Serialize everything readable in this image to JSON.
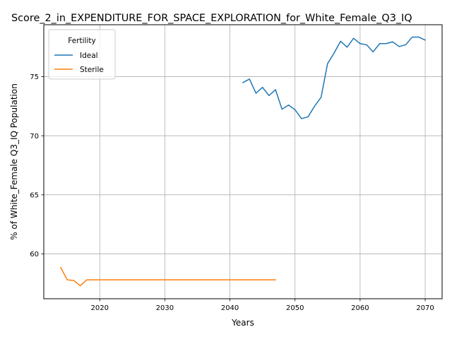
{
  "chart_data": {
    "type": "line",
    "title": "Score_2_in_EXPENDITURE_FOR_SPACE_EXPLORATION_for_White_Female_Q3_IQ",
    "xlabel": "Years",
    "ylabel": "% of White_Female Q3_IQ Population",
    "xlim": [
      2011.4,
      2072.6
    ],
    "ylim": [
      56.2,
      79.4
    ],
    "x_ticks": [
      2020,
      2030,
      2040,
      2050,
      2060,
      2070
    ],
    "y_ticks": [
      60,
      65,
      70,
      75
    ],
    "grid": true,
    "legend": {
      "title": "Fertility",
      "position": "top-left"
    },
    "series": [
      {
        "name": "Ideal",
        "color": "#1f77b4",
        "x": [
          2042,
          2043,
          2044,
          2045,
          2046,
          2047,
          2048,
          2049,
          2050,
          2051,
          2052,
          2053,
          2054,
          2055,
          2056,
          2057,
          2058,
          2059,
          2060,
          2061,
          2062,
          2063,
          2064,
          2065,
          2066,
          2067,
          2068,
          2069,
          2070
        ],
        "y": [
          74.5,
          74.8,
          73.6,
          74.1,
          73.4,
          73.9,
          72.25,
          72.6,
          72.2,
          71.45,
          71.6,
          72.5,
          73.25,
          76.1,
          77.0,
          78.0,
          77.5,
          78.25,
          77.8,
          77.7,
          77.1,
          77.8,
          77.8,
          77.95,
          77.55,
          77.7,
          78.35,
          78.35,
          78.1
        ]
      },
      {
        "name": "Sterile",
        "color": "#ff7f0e",
        "x": [
          2014,
          2015,
          2016,
          2017,
          2018,
          2019,
          2020,
          2021,
          2022,
          2023,
          2024,
          2025,
          2026,
          2027,
          2028,
          2029,
          2030,
          2031,
          2032,
          2033,
          2034,
          2035,
          2036,
          2037,
          2038,
          2039,
          2040,
          2041,
          2042,
          2043,
          2044,
          2045,
          2046,
          2047
        ],
        "y": [
          58.85,
          57.8,
          57.75,
          57.3,
          57.8,
          57.8,
          57.8,
          57.8,
          57.8,
          57.8,
          57.8,
          57.8,
          57.8,
          57.8,
          57.8,
          57.8,
          57.8,
          57.8,
          57.8,
          57.8,
          57.8,
          57.8,
          57.8,
          57.8,
          57.8,
          57.8,
          57.8,
          57.8,
          57.8,
          57.8,
          57.8,
          57.8,
          57.8,
          57.8
        ]
      }
    ]
  }
}
